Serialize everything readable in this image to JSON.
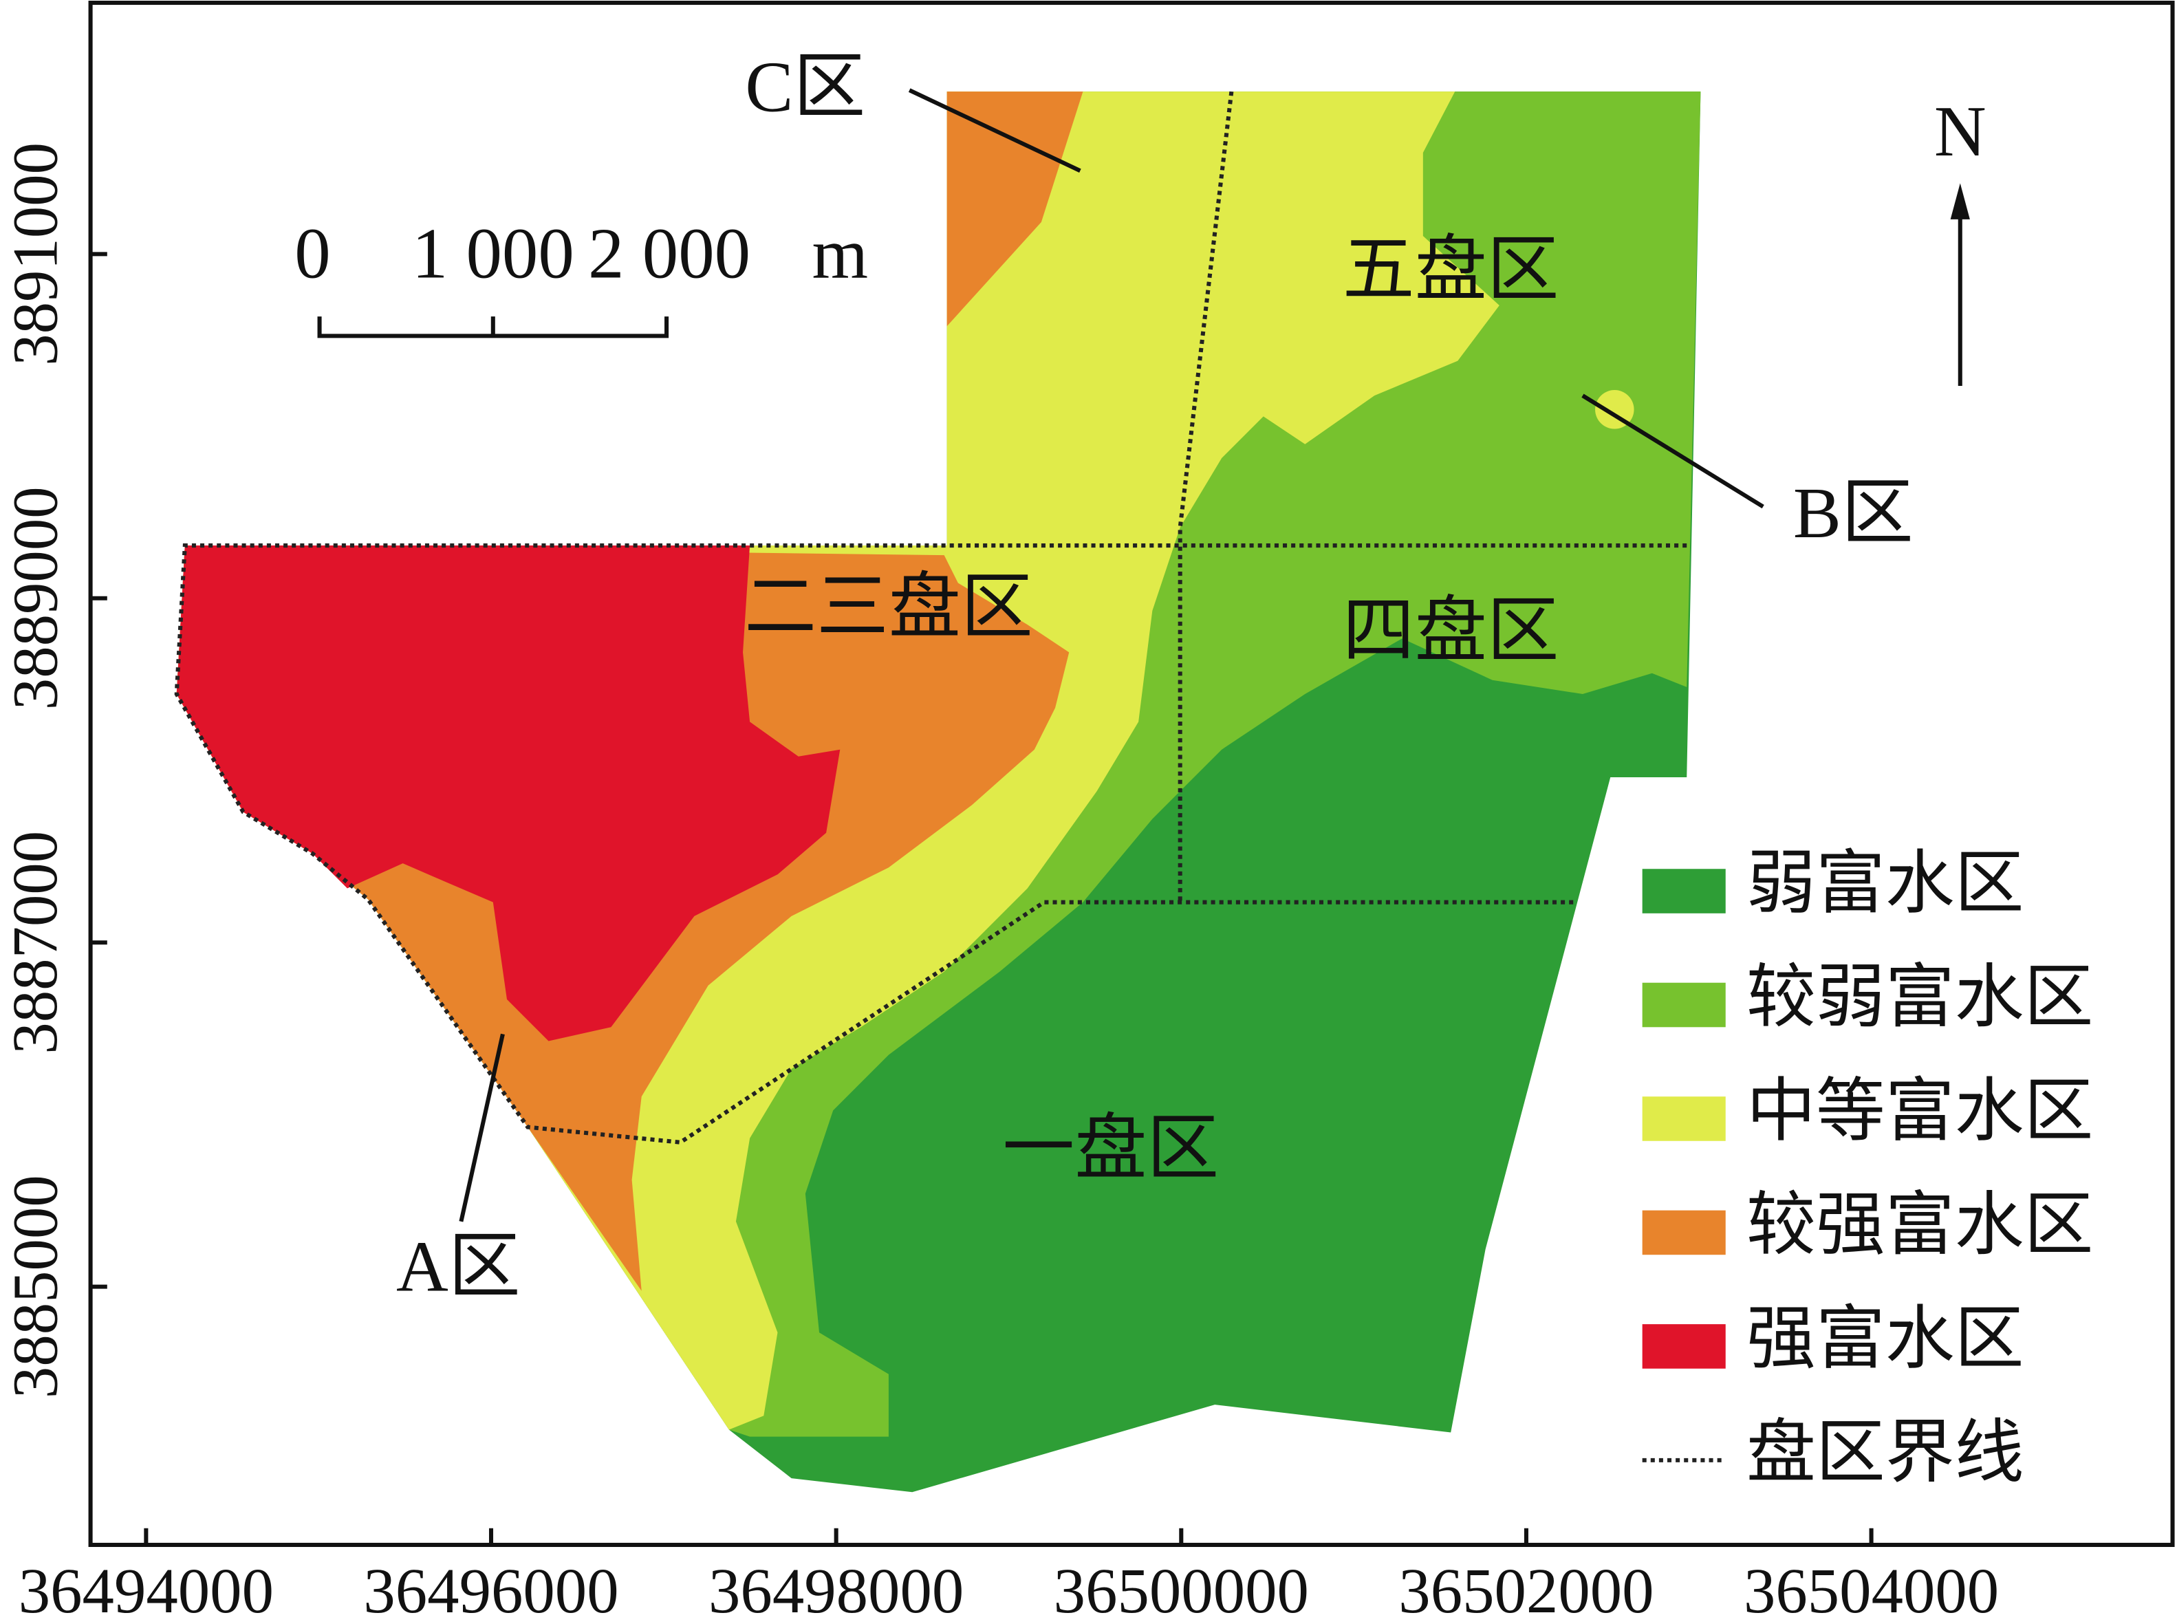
{
  "map": {
    "x_axis": {
      "xlim": [
        36493678,
        36505746
      ],
      "xticks": [
        36494000,
        36496000,
        36498000,
        36500000,
        36502000,
        36504000
      ]
    },
    "y_axis": {
      "ylim": [
        3883500,
        3892460
      ],
      "yticks": [
        3885000,
        3887000,
        3889000,
        3891000
      ]
    },
    "scale_bar": {
      "labels": [
        "0",
        "1 000",
        "2 000"
      ],
      "unit": "m"
    },
    "north": "N",
    "zone_labels": [
      "五盘区",
      "二三盘区",
      "四盘区",
      "一盘区"
    ],
    "annotations": [
      "C区",
      "B区",
      "A区"
    ],
    "legend": [
      {
        "label": "弱富水区",
        "color": "#2e9e36"
      },
      {
        "label": "较弱富水区",
        "color": "#77c22e"
      },
      {
        "label": "中等富水区",
        "color": "#e0eb4a"
      },
      {
        "label": "较强富水区",
        "color": "#e8842c"
      },
      {
        "label": "强富水区",
        "color": "#e0142a"
      },
      {
        "label": "盘区界线"
      }
    ]
  }
}
